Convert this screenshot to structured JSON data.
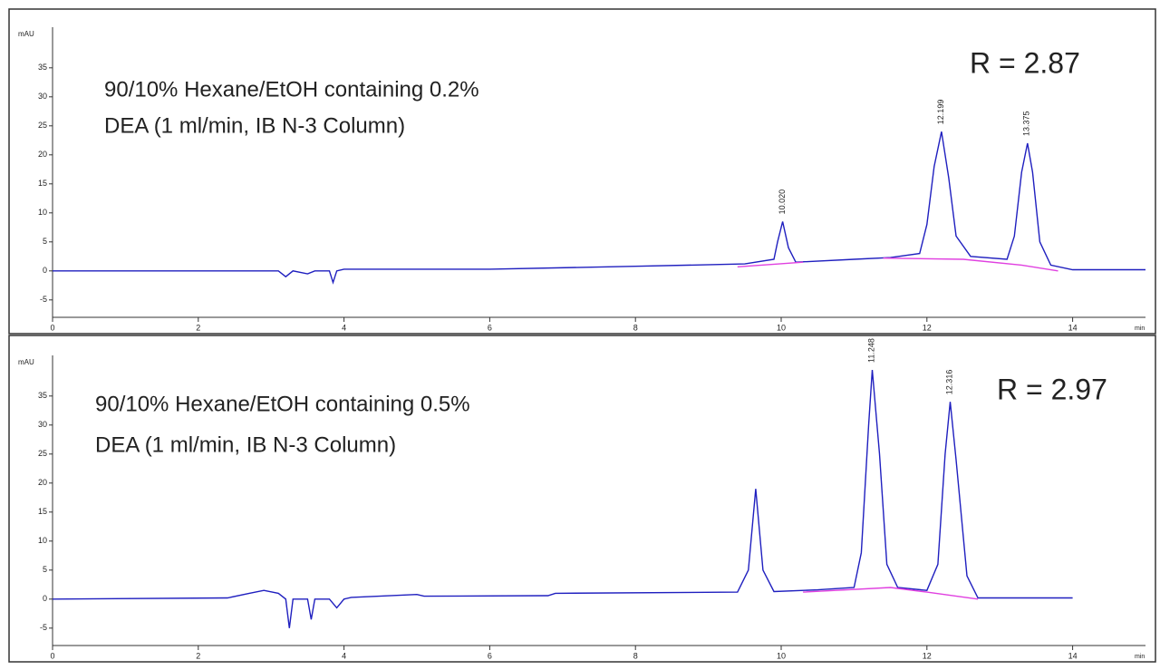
{
  "chart_data": [
    {
      "type": "line",
      "y_label": "mAU",
      "x_label": "min",
      "annotations": [
        "90/10% Hexane/EtOH containing 0.2%",
        "DEA (1 ml/min, IB N-3 Column)",
        "R = 2.87"
      ],
      "xlim": [
        0,
        15
      ],
      "ylim": [
        -8,
        42
      ],
      "xticks": [
        0,
        2,
        4,
        6,
        8,
        10,
        12,
        14
      ],
      "yticks": [
        -5,
        0,
        5,
        10,
        15,
        20,
        25,
        30,
        35
      ],
      "series": [
        {
          "color": "#1f1fbf",
          "x": [
            0,
            3.1,
            3.2,
            3.3,
            3.5,
            3.6,
            3.8,
            3.85,
            3.9,
            4,
            6,
            8,
            9.5,
            9.9,
            9.95,
            10.02,
            10.1,
            10.2,
            11,
            11.5,
            11.9,
            12.0,
            12.1,
            12.2,
            12.3,
            12.4,
            12.6,
            13.1,
            13.2,
            13.3,
            13.38,
            13.45,
            13.55,
            13.7,
            14,
            15
          ],
          "values": [
            0,
            0,
            -1,
            0,
            -0.5,
            0,
            0,
            -2,
            0,
            0.3,
            0.3,
            0.8,
            1.2,
            2,
            5,
            8.5,
            4,
            1.5,
            2,
            2.3,
            3,
            8,
            18,
            24,
            16,
            6,
            2.5,
            2,
            6,
            17,
            22,
            17,
            5,
            1,
            0.2,
            0.2
          ]
        },
        {
          "color": "#e040e0",
          "x": [
            9.4,
            10.3,
            null,
            11.4,
            12.5,
            13.3,
            13.8
          ],
          "values": [
            0.7,
            1.5,
            null,
            2.2,
            2,
            1,
            0
          ]
        }
      ],
      "peaks": [
        {
          "x": 10.02,
          "y": 8.5,
          "label": "10.020"
        },
        {
          "x": 12.199,
          "y": 24,
          "label": "12.199"
        },
        {
          "x": 13.375,
          "y": 22,
          "label": "13.375"
        }
      ]
    },
    {
      "type": "line",
      "y_label": "mAU",
      "x_label": "min",
      "annotations": [
        "90/10% Hexane/EtOH containing 0.5%",
        "DEA (1 ml/min, IB N-3 Column)",
        "R = 2.97"
      ],
      "xlim": [
        0,
        15
      ],
      "ylim": [
        -8,
        42
      ],
      "xticks": [
        0,
        2,
        4,
        6,
        8,
        10,
        12,
        14
      ],
      "yticks": [
        -5,
        0,
        5,
        10,
        15,
        20,
        25,
        30,
        35
      ],
      "series": [
        {
          "color": "#1f1fbf",
          "x": [
            0,
            2.4,
            2.7,
            2.9,
            3.1,
            3.2,
            3.25,
            3.3,
            3.5,
            3.55,
            3.6,
            3.8,
            3.9,
            4,
            4.1,
            5,
            5.1,
            6.8,
            6.9,
            9.4,
            9.55,
            9.65,
            9.75,
            9.9,
            10.5,
            11.0,
            11.1,
            11.2,
            11.25,
            11.35,
            11.45,
            11.6,
            12.0,
            12.15,
            12.25,
            12.32,
            12.4,
            12.55,
            12.7,
            14
          ],
          "values": [
            0,
            0.2,
            1,
            1.5,
            1,
            0,
            -5,
            0,
            0,
            -3.5,
            0,
            0,
            -1.5,
            0,
            0.3,
            0.8,
            0.5,
            0.6,
            1,
            1.2,
            5,
            19,
            5,
            1.3,
            1.6,
            2,
            8,
            30,
            39.5,
            25,
            6,
            2,
            1.5,
            6,
            25,
            34,
            24,
            4,
            0.2,
            0.2
          ]
        },
        {
          "color": "#e040e0",
          "x": [
            10.3,
            11.5,
            12,
            12.7
          ],
          "values": [
            1.2,
            2,
            1.2,
            0
          ]
        }
      ],
      "peaks": [
        {
          "x": 11.248,
          "y": 39.5,
          "label": "11.248"
        },
        {
          "x": 12.316,
          "y": 34,
          "label": "12.316"
        }
      ]
    }
  ]
}
